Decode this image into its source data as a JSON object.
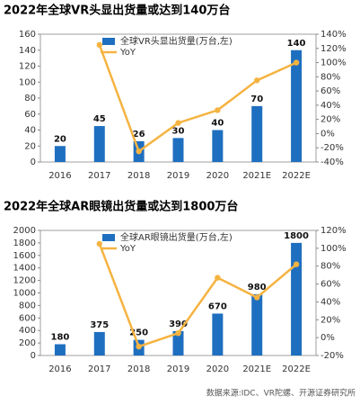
{
  "chart_data": [
    {
      "type": "bar",
      "title": "2022年全球VR头显出货量或达到140万台",
      "categories": [
        "2016",
        "2017",
        "2018",
        "2019",
        "2020",
        "2021E",
        "2022E"
      ],
      "series": [
        {
          "name": "全球VR头显出货量(万台,左)",
          "color": "#1f6fc0",
          "values": [
            20,
            45,
            26,
            30,
            40,
            70,
            140
          ]
        },
        {
          "name": "YoY",
          "color": "#f5b341",
          "axis": "y2",
          "values": [
            null,
            125,
            -25,
            15,
            33,
            75,
            100
          ]
        }
      ],
      "ylim": [
        0,
        160
      ],
      "yticks": [
        0,
        20,
        40,
        60,
        80,
        100,
        120,
        140,
        160
      ],
      "y2lim": [
        -40,
        140
      ],
      "y2ticks": [
        {
          "value": -40,
          "label": "-40%"
        },
        {
          "value": -20,
          "label": "-20%"
        },
        {
          "value": 0,
          "label": "0%"
        },
        {
          "value": 20,
          "label": "20%"
        },
        {
          "value": 40,
          "label": "40%"
        },
        {
          "value": 60,
          "label": "60%"
        },
        {
          "value": 80,
          "label": "80%"
        },
        {
          "value": 100,
          "label": "100%"
        },
        {
          "value": 120,
          "label": "120%"
        },
        {
          "value": 140,
          "label": "140%"
        }
      ],
      "legend": "top-left"
    },
    {
      "type": "bar",
      "title": "2022年全球AR眼镜出货量或达到1800万台",
      "categories": [
        "2016",
        "2017",
        "2018",
        "2019",
        "2020",
        "2021E",
        "2022E"
      ],
      "series": [
        {
          "name": "全球AR眼镜出货量(万台,左)",
          "color": "#1f6fc0",
          "values": [
            180,
            375,
            250,
            390,
            670,
            980,
            1800
          ]
        },
        {
          "name": "YoY",
          "color": "#f5b341",
          "axis": "y2",
          "values": [
            null,
            105,
            -10,
            5,
            67,
            45,
            82
          ]
        }
      ],
      "ylim": [
        0,
        2000
      ],
      "yticks": [
        0,
        200,
        400,
        600,
        800,
        1000,
        1200,
        1400,
        1600,
        1800,
        2000
      ],
      "y2lim": [
        -20,
        120
      ],
      "y2ticks": [
        {
          "value": -20,
          "label": "-20%"
        },
        {
          "value": 0,
          "label": "0%"
        },
        {
          "value": 20,
          "label": "20%"
        },
        {
          "value": 40,
          "label": "40%"
        },
        {
          "value": 60,
          "label": "60%"
        },
        {
          "value": 80,
          "label": "80%"
        },
        {
          "value": 100,
          "label": "100%"
        },
        {
          "value": 120,
          "label": "120%"
        }
      ],
      "legend": "top-left",
      "source": "数据来源:IDC、VR陀螺、开源证券研究所"
    }
  ]
}
